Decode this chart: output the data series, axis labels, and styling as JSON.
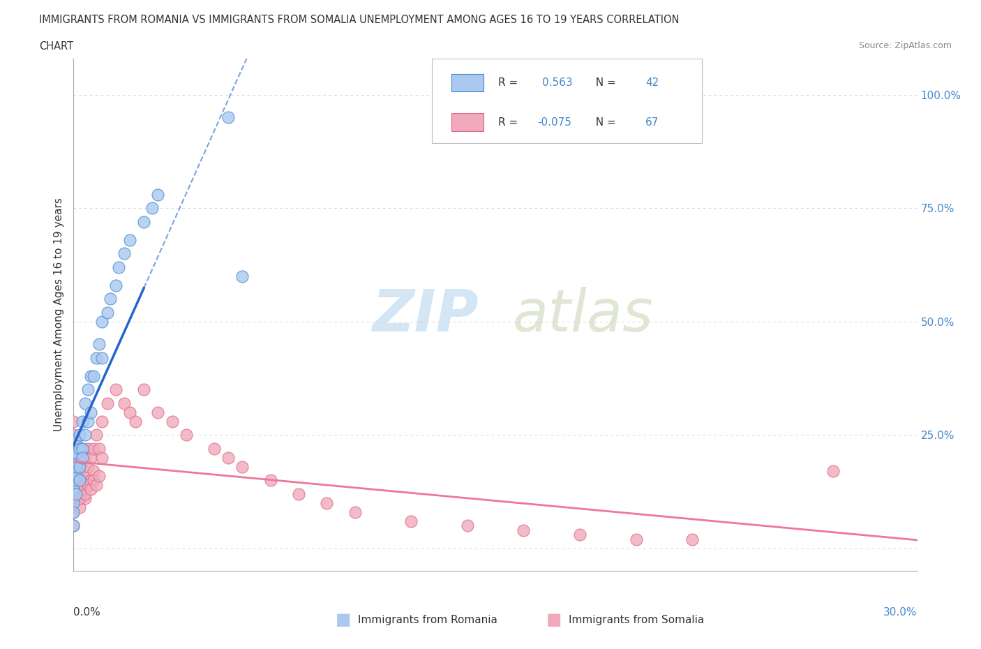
{
  "title_line1": "IMMIGRANTS FROM ROMANIA VS IMMIGRANTS FROM SOMALIA UNEMPLOYMENT AMONG AGES 16 TO 19 YEARS CORRELATION",
  "title_line2": "CHART",
  "source": "Source: ZipAtlas.com",
  "ylabel": "Unemployment Among Ages 16 to 19 years",
  "legend_romania_label": "Immigrants from Romania",
  "legend_somalia_label": "Immigrants from Somalia",
  "romania_color": "#aac8f0",
  "somalia_color": "#f0aabb",
  "romania_edge": "#4488cc",
  "somalia_edge": "#dd6688",
  "trendline_romania_color": "#2266cc",
  "trendline_somalia_color": "#ee7799",
  "r_romania": 0.563,
  "n_romania": 42,
  "r_somalia": -0.075,
  "n_somalia": 67,
  "watermark_zip": "ZIP",
  "watermark_atlas": "atlas",
  "background_color": "#ffffff",
  "grid_color": "#cccccc",
  "xlim": [
    0.0,
    0.3
  ],
  "ylim": [
    -0.05,
    1.08
  ],
  "ytick_positions": [
    0.0,
    0.25,
    0.5,
    0.75,
    1.0
  ],
  "ytick_labels_right": [
    "",
    "25.0%",
    "50.0%",
    "75.0%",
    "100.0%"
  ],
  "romania_x": [
    0.0,
    0.0,
    0.0,
    0.0,
    0.0,
    0.0,
    0.0,
    0.0,
    0.001,
    0.001,
    0.001,
    0.001,
    0.001,
    0.002,
    0.002,
    0.002,
    0.002,
    0.003,
    0.003,
    0.003,
    0.004,
    0.004,
    0.005,
    0.005,
    0.006,
    0.006,
    0.007,
    0.008,
    0.009,
    0.01,
    0.01,
    0.012,
    0.013,
    0.015,
    0.016,
    0.018,
    0.02,
    0.025,
    0.028,
    0.03,
    0.055,
    0.06
  ],
  "romania_y": [
    0.13,
    0.15,
    0.17,
    0.19,
    0.21,
    0.1,
    0.08,
    0.05,
    0.16,
    0.18,
    0.21,
    0.24,
    0.12,
    0.18,
    0.22,
    0.15,
    0.25,
    0.22,
    0.28,
    0.2,
    0.25,
    0.32,
    0.28,
    0.35,
    0.3,
    0.38,
    0.38,
    0.42,
    0.45,
    0.42,
    0.5,
    0.52,
    0.55,
    0.58,
    0.62,
    0.65,
    0.68,
    0.72,
    0.75,
    0.78,
    0.95,
    0.6
  ],
  "somalia_x": [
    0.0,
    0.0,
    0.0,
    0.0,
    0.0,
    0.0,
    0.0,
    0.0,
    0.0,
    0.0,
    0.001,
    0.001,
    0.001,
    0.001,
    0.001,
    0.002,
    0.002,
    0.002,
    0.002,
    0.003,
    0.003,
    0.003,
    0.004,
    0.004,
    0.004,
    0.005,
    0.005,
    0.006,
    0.006,
    0.007,
    0.007,
    0.008,
    0.009,
    0.01,
    0.01,
    0.012,
    0.015,
    0.018,
    0.02,
    0.022,
    0.025,
    0.03,
    0.035,
    0.04,
    0.05,
    0.055,
    0.06,
    0.07,
    0.08,
    0.09,
    0.1,
    0.12,
    0.14,
    0.16,
    0.18,
    0.2,
    0.22,
    0.001,
    0.002,
    0.003,
    0.004,
    0.005,
    0.006,
    0.007,
    0.008,
    0.009,
    0.27
  ],
  "somalia_y": [
    0.15,
    0.18,
    0.2,
    0.12,
    0.1,
    0.08,
    0.05,
    0.22,
    0.25,
    0.28,
    0.14,
    0.17,
    0.2,
    0.23,
    0.11,
    0.13,
    0.17,
    0.21,
    0.09,
    0.15,
    0.19,
    0.22,
    0.16,
    0.2,
    0.11,
    0.18,
    0.22,
    0.2,
    0.15,
    0.22,
    0.17,
    0.25,
    0.22,
    0.28,
    0.2,
    0.32,
    0.35,
    0.32,
    0.3,
    0.28,
    0.35,
    0.3,
    0.28,
    0.25,
    0.22,
    0.2,
    0.18,
    0.15,
    0.12,
    0.1,
    0.08,
    0.06,
    0.05,
    0.04,
    0.03,
    0.02,
    0.02,
    0.12,
    0.11,
    0.13,
    0.12,
    0.14,
    0.13,
    0.15,
    0.14,
    0.16,
    0.17
  ]
}
